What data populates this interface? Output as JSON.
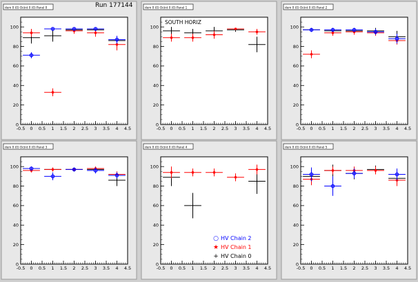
{
  "run_label": "Run 177144",
  "colors": {
    "chain2": "#0000ff",
    "chain1": "#ff0000",
    "chain0": "#000000"
  },
  "legend": [
    {
      "key": "chain2",
      "label": "HV Chain 2",
      "marker": "circle",
      "symbol": "○"
    },
    {
      "key": "chain1",
      "label": "HV Chain 1",
      "marker": "star",
      "symbol": "★"
    },
    {
      "key": "chain0",
      "label": "HV Chain 0",
      "marker": "cross",
      "symbol": "+"
    }
  ],
  "chart_data": [
    {
      "type": "scatter",
      "title": "dem 0 (0) Octnt 0 (0) Panel 0",
      "annotation": "",
      "xlim": [
        -0.5,
        4.5
      ],
      "ylim": [
        0,
        110
      ],
      "xticks": [
        "-0.5",
        "0",
        "0.5",
        "1",
        "1.5",
        "2",
        "2.5",
        "3",
        "3.5",
        "4",
        "4.5"
      ],
      "yticks": [
        "0",
        "20",
        "40",
        "60",
        "80",
        "100"
      ],
      "series": [
        {
          "key": "chain2",
          "points": [
            {
              "x": 0,
              "y": 71,
              "ex": 0.4,
              "ey": 3
            },
            {
              "x": 1,
              "y": 98,
              "ex": 0.4,
              "ey": 1
            },
            {
              "x": 2,
              "y": 98,
              "ex": 0.4,
              "ey": 1
            },
            {
              "x": 3,
              "y": 98,
              "ex": 0.4,
              "ey": 1
            },
            {
              "x": 4,
              "y": 87,
              "ex": 0.4,
              "ey": 4
            }
          ]
        },
        {
          "key": "chain1",
          "points": [
            {
              "x": 0,
              "y": 94,
              "ex": 0.4,
              "ey": 4
            },
            {
              "x": 1,
              "y": 33,
              "ex": 0.4,
              "ey": 4
            },
            {
              "x": 2,
              "y": 96,
              "ex": 0.4,
              "ey": 3
            },
            {
              "x": 3,
              "y": 94,
              "ex": 0.4,
              "ey": 4
            },
            {
              "x": 4,
              "y": 82,
              "ex": 0.4,
              "ey": 6
            }
          ]
        },
        {
          "key": "chain0",
          "points": [
            {
              "x": 0,
              "y": 89,
              "ex": 0.4,
              "ey": 6
            },
            {
              "x": 1,
              "y": 91,
              "ex": 0.4,
              "ey": 6
            },
            {
              "x": 2,
              "y": 97,
              "ex": 0.4,
              "ey": 2
            },
            {
              "x": 3,
              "y": 97,
              "ex": 0.4,
              "ey": 2
            },
            {
              "x": 4,
              "y": 86,
              "ex": 0.4,
              "ey": 5
            }
          ]
        }
      ]
    },
    {
      "type": "scatter",
      "title": "dem 0 (0) Octnt 0 (0) Panel 1",
      "annotation": "SOUTH HORIZ",
      "xlim": [
        -0.5,
        4.5
      ],
      "ylim": [
        0,
        110
      ],
      "xticks": [
        "-0.5",
        "0",
        "0.5",
        "1",
        "1.5",
        "2",
        "2.5",
        "3",
        "3.5",
        "4",
        "4.5"
      ],
      "yticks": [
        "0",
        "20",
        "40",
        "60",
        "80",
        "100"
      ],
      "series": [
        {
          "key": "chain2",
          "points": []
        },
        {
          "key": "chain1",
          "points": [
            {
              "x": 0,
              "y": 89,
              "ex": 0.4,
              "ey": 4
            },
            {
              "x": 1,
              "y": 89,
              "ex": 0.4,
              "ey": 4
            },
            {
              "x": 2,
              "y": 92,
              "ex": 0.4,
              "ey": 4
            },
            {
              "x": 3,
              "y": 98,
              "ex": 0.4,
              "ey": 1
            },
            {
              "x": 4,
              "y": 95,
              "ex": 0.4,
              "ey": 3
            }
          ]
        },
        {
          "key": "chain0",
          "points": [
            {
              "x": 0,
              "y": 96,
              "ex": 0.4,
              "ey": 4
            },
            {
              "x": 1,
              "y": 94,
              "ex": 0.4,
              "ey": 4
            },
            {
              "x": 2,
              "y": 96,
              "ex": 0.4,
              "ey": 4
            },
            {
              "x": 3,
              "y": 97,
              "ex": 0.4,
              "ey": 2
            },
            {
              "x": 4,
              "y": 82,
              "ex": 0.4,
              "ey": 8
            }
          ]
        }
      ]
    },
    {
      "type": "scatter",
      "title": "dem 0 (0) Octnt 0 (0) Panel 2",
      "annotation": "",
      "xlim": [
        -0.5,
        4.5
      ],
      "ylim": [
        0,
        110
      ],
      "xticks": [
        "-0.5",
        "0",
        "0.5",
        "1",
        "1.5",
        "2",
        "2.5",
        "3",
        "3.5",
        "4",
        "4.5"
      ],
      "yticks": [
        "0",
        "20",
        "40",
        "60",
        "80",
        "100"
      ],
      "series": [
        {
          "key": "chain2",
          "points": [
            {
              "x": 0,
              "y": 97,
              "ex": 0.4,
              "ey": 2
            },
            {
              "x": 1,
              "y": 97,
              "ex": 0.4,
              "ey": 2
            },
            {
              "x": 2,
              "y": 97,
              "ex": 0.4,
              "ey": 2
            },
            {
              "x": 3,
              "y": 95,
              "ex": 0.4,
              "ey": 3
            },
            {
              "x": 4,
              "y": 88,
              "ex": 0.4,
              "ey": 5
            }
          ]
        },
        {
          "key": "chain1",
          "points": [
            {
              "x": 0,
              "y": 72,
              "ex": 0.4,
              "ey": 4
            },
            {
              "x": 1,
              "y": 94,
              "ex": 0.4,
              "ey": 3
            },
            {
              "x": 2,
              "y": 95,
              "ex": 0.4,
              "ey": 3
            },
            {
              "x": 3,
              "y": 94,
              "ex": 0.4,
              "ey": 3
            },
            {
              "x": 4,
              "y": 86,
              "ex": 0.4,
              "ey": 4
            }
          ]
        },
        {
          "key": "chain0",
          "points": [
            {
              "x": 0,
              "y": 97,
              "ex": 0.4,
              "ey": 2
            },
            {
              "x": 1,
              "y": 96,
              "ex": 0.4,
              "ey": 3
            },
            {
              "x": 2,
              "y": 96,
              "ex": 0.4,
              "ey": 3
            },
            {
              "x": 3,
              "y": 96,
              "ex": 0.4,
              "ey": 3
            },
            {
              "x": 4,
              "y": 90,
              "ex": 0.4,
              "ey": 6
            }
          ]
        }
      ]
    },
    {
      "type": "scatter",
      "title": "dem 0 (0) Octnt 0 (0) Panel 3",
      "annotation": "",
      "xlim": [
        -0.5,
        4.5
      ],
      "ylim": [
        0,
        110
      ],
      "xticks": [
        "-0.5",
        "0",
        "0.5",
        "1",
        "1.5",
        "2",
        "2.5",
        "3",
        "3.5",
        "4",
        "4.5"
      ],
      "yticks": [
        "0",
        "20",
        "40",
        "60",
        "80",
        "100"
      ],
      "series": [
        {
          "key": "chain2",
          "points": [
            {
              "x": 0,
              "y": 98,
              "ex": 0.4,
              "ey": 2
            },
            {
              "x": 1,
              "y": 90,
              "ex": 0.4,
              "ey": 4
            },
            {
              "x": 2,
              "y": 97,
              "ex": 0.4,
              "ey": 2
            },
            {
              "x": 3,
              "y": 96,
              "ex": 0.4,
              "ey": 3
            },
            {
              "x": 4,
              "y": 91,
              "ex": 0.4,
              "ey": 3
            }
          ]
        },
        {
          "key": "chain1",
          "points": [
            {
              "x": 0,
              "y": 96,
              "ex": 0.4,
              "ey": 2
            },
            {
              "x": 1,
              "y": 97,
              "ex": 0.4,
              "ey": 2
            },
            {
              "x": 2,
              "y": 97,
              "ex": 0.4,
              "ey": 2
            },
            {
              "x": 3,
              "y": 98,
              "ex": 0.4,
              "ey": 2
            },
            {
              "x": 4,
              "y": 92,
              "ex": 0.4,
              "ey": 3
            }
          ]
        },
        {
          "key": "chain0",
          "points": [
            {
              "x": 0,
              "y": 98,
              "ex": 0.4,
              "ey": 2
            },
            {
              "x": 1,
              "y": 97,
              "ex": 0.4,
              "ey": 2
            },
            {
              "x": 2,
              "y": 97,
              "ex": 0.4,
              "ey": 2
            },
            {
              "x": 3,
              "y": 97,
              "ex": 0.4,
              "ey": 2
            },
            {
              "x": 4,
              "y": 86,
              "ex": 0.4,
              "ey": 6
            }
          ]
        }
      ]
    },
    {
      "type": "scatter",
      "title": "dem 0 (0) Octnt 0 (0) Panel 4",
      "annotation": "",
      "xlim": [
        -0.5,
        4.5
      ],
      "ylim": [
        0,
        110
      ],
      "xticks": [
        "-0.5",
        "0",
        "0.5",
        "1",
        "1.5",
        "2",
        "2.5",
        "3",
        "3.5",
        "4",
        "4.5"
      ],
      "yticks": [
        "0",
        "20",
        "40",
        "60",
        "80",
        "100"
      ],
      "series": [
        {
          "key": "chain2",
          "points": []
        },
        {
          "key": "chain1",
          "points": [
            {
              "x": 0,
              "y": 94,
              "ex": 0.4,
              "ey": 6
            },
            {
              "x": 1,
              "y": 94,
              "ex": 0.4,
              "ey": 4
            },
            {
              "x": 2,
              "y": 94,
              "ex": 0.4,
              "ey": 4
            },
            {
              "x": 3,
              "y": 89,
              "ex": 0.4,
              "ey": 4
            },
            {
              "x": 4,
              "y": 97,
              "ex": 0.4,
              "ey": 5
            }
          ]
        },
        {
          "key": "chain0",
          "points": [
            {
              "x": 0,
              "y": 89,
              "ex": 0.4,
              "ey": 9
            },
            {
              "x": 1,
              "y": 60,
              "ex": 0.4,
              "ey": 13
            },
            {
              "x": 4,
              "y": 85,
              "ex": 0.4,
              "ey": 13
            }
          ]
        }
      ]
    },
    {
      "type": "scatter",
      "title": "dem 0 (0) Octnt 0 (0) Panel 5",
      "annotation": "",
      "xlim": [
        -0.5,
        4.5
      ],
      "ylim": [
        0,
        110
      ],
      "xticks": [
        "-0.5",
        "0",
        "0.5",
        "1",
        "1.5",
        "2",
        "2.5",
        "3",
        "3.5",
        "4",
        "4.5"
      ],
      "yticks": [
        "0",
        "20",
        "40",
        "60",
        "80",
        "100"
      ],
      "series": [
        {
          "key": "chain2",
          "points": [
            {
              "x": 0,
              "y": 92,
              "ex": 0.4,
              "ey": 7
            },
            {
              "x": 1,
              "y": 80,
              "ex": 0.4,
              "ey": 10
            },
            {
              "x": 2,
              "y": 93,
              "ex": 0.4,
              "ey": 5
            },
            {
              "x": 4,
              "y": 92,
              "ex": 0.4,
              "ey": 6
            }
          ]
        },
        {
          "key": "chain1",
          "points": [
            {
              "x": 0,
              "y": 87,
              "ex": 0.4,
              "ey": 6
            },
            {
              "x": 1,
              "y": 96,
              "ex": 0.4,
              "ey": 4
            },
            {
              "x": 2,
              "y": 96,
              "ex": 0.4,
              "ey": 4
            },
            {
              "x": 3,
              "y": 96,
              "ex": 0.4,
              "ey": 4
            },
            {
              "x": 4,
              "y": 86,
              "ex": 0.4,
              "ey": 6
            }
          ]
        },
        {
          "key": "chain0",
          "points": [
            {
              "x": 0,
              "y": 90,
              "ex": 0.4,
              "ey": 9
            },
            {
              "x": 1,
              "y": 96,
              "ex": 0.4,
              "ey": 6
            },
            {
              "x": 2,
              "y": 93,
              "ex": 0.4,
              "ey": 6
            },
            {
              "x": 3,
              "y": 97,
              "ex": 0.4,
              "ey": 4
            },
            {
              "x": 4,
              "y": 88,
              "ex": 0.4,
              "ey": 8
            }
          ]
        }
      ]
    }
  ]
}
